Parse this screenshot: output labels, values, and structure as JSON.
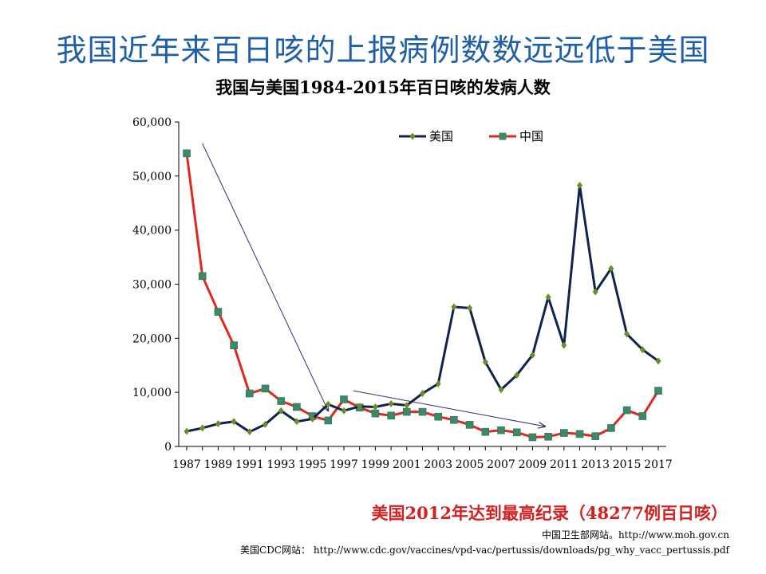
{
  "slide": {
    "headline": "我国近年来百日咳的上报病例数数远远低于美国",
    "highlight": "美国2012年达到最高纪录（48277例百日咳）",
    "source_cn": "中国卫生部网站。http://www.moh.gov.cn",
    "source_us": "美国CDC网站：  http://www.cdc.gov/vaccines/vpd-vac/pertussis/downloads/pg_why_vacc_pertussis.pdf"
  },
  "chart_data": {
    "type": "line",
    "title": "我国与美国1984-2015年百日咳的发病人数",
    "xlabel": "",
    "ylabel": "",
    "ylim": [
      0,
      60000
    ],
    "yticks": [
      0,
      10000,
      20000,
      30000,
      40000,
      50000,
      60000
    ],
    "ytick_labels": [
      "0",
      "10,000",
      "20,000",
      "30,000",
      "40,000",
      "50,000",
      "60,000"
    ],
    "x": [
      1987,
      1988,
      1989,
      1990,
      1991,
      1992,
      1993,
      1994,
      1995,
      1996,
      1997,
      1998,
      1999,
      2000,
      2001,
      2002,
      2003,
      2004,
      2005,
      2006,
      2007,
      2008,
      2009,
      2010,
      2011,
      2012,
      2013,
      2014,
      2015,
      2016,
      2017
    ],
    "xtick_labels": [
      "1987",
      "1989",
      "1991",
      "1993",
      "1995",
      "1997",
      "1999",
      "2001",
      "2003",
      "2005",
      "2007",
      "2009",
      "2011",
      "2013",
      "2015",
      "2017"
    ],
    "legend_position": "top-right",
    "grid": false,
    "series": [
      {
        "name": "美国",
        "color": "#0f2350",
        "marker": "diamond",
        "marker_color": "#6b8e23",
        "values": [
          2800,
          3400,
          4200,
          4600,
          2700,
          4100,
          6600,
          4600,
          5100,
          7800,
          6600,
          7400,
          7300,
          7900,
          7600,
          9800,
          11600,
          25800,
          25600,
          15600,
          10500,
          13200,
          16900,
          27600,
          18700,
          48277,
          28600,
          32900,
          20800,
          17900,
          15800
        ]
      },
      {
        "name": "中国",
        "color": "#e0281e",
        "marker": "square",
        "marker_color": "#3a8a6a",
        "values": [
          54200,
          31500,
          24900,
          18700,
          9800,
          10700,
          8400,
          7300,
          5600,
          4800,
          8700,
          7200,
          6100,
          5700,
          6400,
          6400,
          5500,
          4900,
          4000,
          2700,
          3000,
          2600,
          1700,
          1800,
          2500,
          2300,
          1900,
          3400,
          6700,
          5600,
          10300
        ]
      }
    ],
    "annotations": [
      {
        "type": "arrow",
        "from": [
          1988.0,
          56000
        ],
        "to": [
          1996.0,
          6600
        ],
        "color": "#3a2a7a"
      },
      {
        "type": "arrow",
        "from": [
          1997.6,
          10300
        ],
        "to": [
          2009.8,
          3700
        ],
        "color": "#3a2a7a"
      }
    ]
  }
}
